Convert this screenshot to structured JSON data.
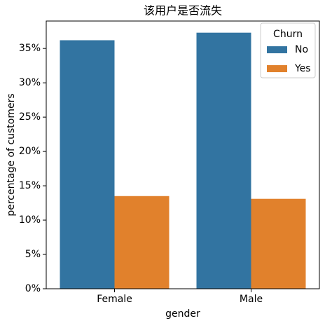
{
  "chart_data": {
    "type": "bar",
    "title": "该用户是否流失",
    "x_label": "gender",
    "y_label": "percentage of customers",
    "categories": [
      "Female",
      "Male"
    ],
    "series": [
      {
        "name": "No",
        "color": "#3274a1",
        "values": [
          36.2,
          37.3
        ]
      },
      {
        "name": "Yes",
        "color": "#e1812c",
        "values": [
          13.5,
          13.1
        ]
      }
    ],
    "ylim": [
      0,
      39
    ],
    "yticks": [
      {
        "value": 0,
        "label": "0%"
      },
      {
        "value": 5,
        "label": "5%"
      },
      {
        "value": 10,
        "label": "10%"
      },
      {
        "value": 15,
        "label": "15%"
      },
      {
        "value": 20,
        "label": "20%"
      },
      {
        "value": 25,
        "label": "25%"
      },
      {
        "value": 30,
        "label": "30%"
      },
      {
        "value": 35,
        "label": "35%"
      }
    ],
    "legend_title": "Churn",
    "legend_position": "upper right",
    "grid": false
  }
}
